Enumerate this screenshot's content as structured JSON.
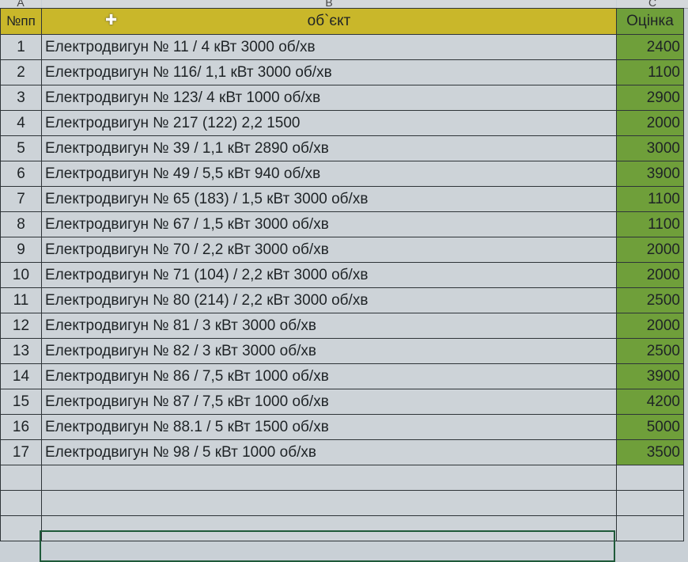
{
  "column_letters": [
    "A",
    "B",
    "C"
  ],
  "header": {
    "num": "№пп",
    "object": "об`єкт",
    "value": "Оцінка"
  },
  "rows": [
    {
      "n": "1",
      "object": "Електродвигун № 11 / 4 кВт 3000 об/хв",
      "value": "2400"
    },
    {
      "n": "2",
      "object": "Електродвигун № 116/ 1,1 кВт 3000 об/хв",
      "value": "1100"
    },
    {
      "n": "3",
      "object": "Електродвигун № 123/ 4 кВт 1000 об/хв",
      "value": "2900"
    },
    {
      "n": "4",
      "object": "Електродвигун № 217 (122) 2,2 1500",
      "value": "2000"
    },
    {
      "n": "5",
      "object": "Електродвигун № 39 / 1,1 кВт 2890 об/хв",
      "value": "3000"
    },
    {
      "n": "6",
      "object": "Електродвигун № 49 / 5,5 кВт 940 об/хв",
      "value": "3900"
    },
    {
      "n": "7",
      "object": "Електродвигун № 65 (183) / 1,5 кВт 3000 об/хв",
      "value": "1100"
    },
    {
      "n": "8",
      "object": "Електродвигун № 67 / 1,5 кВт 3000 об/хв",
      "value": "1100"
    },
    {
      "n": "9",
      "object": "Електродвигун № 70 / 2,2 кВт 3000 об/хв",
      "value": "2000"
    },
    {
      "n": "10",
      "object": "Електродвигун № 71 (104) / 2,2 кВт 3000 об/хв",
      "value": "2000"
    },
    {
      "n": "11",
      "object": "Електродвигун № 80 (214) / 2,2 кВт 3000 об/хв",
      "value": "2500"
    },
    {
      "n": "12",
      "object": "Електродвигун № 81 / 3 кВт 3000 об/хв",
      "value": "2000"
    },
    {
      "n": "13",
      "object": "Електродвигун № 82 / 3 кВт 3000 об/хв",
      "value": "2500"
    },
    {
      "n": "14",
      "object": "Електродвигун № 86 / 7,5 кВт 1000 об/хв",
      "value": "3900"
    },
    {
      "n": "15",
      "object": "Електродвигун № 87 / 7,5 кВт 1000 об/хв",
      "value": "4200"
    },
    {
      "n": "16",
      "object": "Електродвигун № 88.1 / 5 кВт 1500 об/хв",
      "value": "5000"
    },
    {
      "n": "17",
      "object": "Електродвигун № 98 / 5 кВт 1000 об/хв",
      "value": "3500"
    }
  ],
  "colors": {
    "header_fill": "#c9b72a",
    "value_fill": "#6f9f3a",
    "cell_fill": "#cdd3d8"
  }
}
